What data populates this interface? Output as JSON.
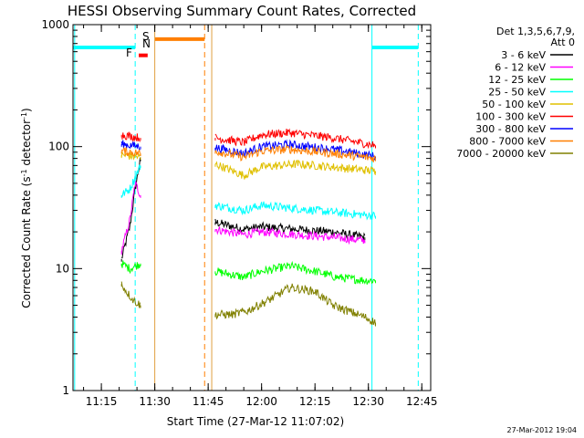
{
  "chart_data": {
    "type": "line",
    "title": "HESSI Observing Summary Count Rates, Corrected",
    "xlabel": "Start Time (27-Mar-12 11:07:02)",
    "ylabel": "Corrected Count Rate (s",
    "ylabel_sup1": "-1",
    "ylabel_mid": " detector",
    "ylabel_sup2": "-1",
    "ylabel_end": ")",
    "ylog": true,
    "ylim": [
      1,
      1000
    ],
    "xlim": [
      "11:07:02",
      "12:47:30"
    ],
    "x_ticks": [
      "11:15",
      "11:30",
      "11:45",
      "12:00",
      "12:15",
      "12:30",
      "12:45"
    ],
    "y_ticks": [
      "1",
      "10",
      "100",
      "1000"
    ],
    "legend_header": [
      "Det 1,3,5,6,7,9,",
      "Att 0"
    ],
    "timestamp": "27-Mar-2012 19:04",
    "flags": {
      "F": {
        "label": "F",
        "color": "#ff0000"
      },
      "S": {
        "label": "S",
        "color": "#ff7f00"
      },
      "N": {
        "label": "N",
        "color": "#00e0e0"
      }
    },
    "series": [
      {
        "name": "3 - 6 keV",
        "color": "#000000",
        "segments": [
          {
            "t": [
              "11:20:40",
              "11:23:00",
              "11:24:30",
              "11:26:00"
            ],
            "v": [
              12,
              22,
              45,
              80
            ]
          },
          {
            "t": [
              "11:47:00",
              "11:55:00",
              "12:00:00",
              "12:10:00",
              "12:20:00",
              "12:29:00"
            ],
            "v": [
              24,
              21,
              22,
              21,
              20,
              18
            ]
          }
        ]
      },
      {
        "name": "6 - 12 keV",
        "color": "#ff00ff",
        "segments": [
          {
            "t": [
              "11:20:40",
              "11:23:00",
              "11:24:30",
              "11:26:00"
            ],
            "v": [
              14,
              25,
              50,
              40
            ]
          },
          {
            "t": [
              "11:47:00",
              "11:55:00",
              "12:00:00",
              "12:10:00",
              "12:20:00",
              "12:29:00"
            ],
            "v": [
              21,
              19,
              20,
              19,
              18,
              17
            ]
          }
        ]
      },
      {
        "name": "12 - 25 keV",
        "color": "#00ff00",
        "segments": [
          {
            "t": [
              "11:20:40",
              "11:23:00",
              "11:26:00"
            ],
            "v": [
              11,
              10,
              11
            ]
          },
          {
            "t": [
              "11:47:00",
              "11:55:00",
              "12:00:00",
              "12:08:00",
              "12:15:00",
              "12:21:00",
              "12:29:00",
              "12:32:00"
            ],
            "v": [
              9.5,
              8.5,
              9.5,
              10.5,
              9.5,
              8.5,
              8.0,
              8.0
            ]
          }
        ]
      },
      {
        "name": "25 - 50 keV",
        "color": "#00ffff",
        "segments": [
          {
            "t": [
              "11:20:40",
              "11:23:00",
              "11:25:30",
              "11:26:00"
            ],
            "v": [
              40,
              45,
              65,
              70
            ]
          },
          {
            "t": [
              "11:47:00",
              "11:55:00",
              "12:00:00",
              "12:10:00",
              "12:20:00",
              "12:32:00"
            ],
            "v": [
              33,
              30,
              33,
              31,
              29,
              27
            ]
          }
        ]
      },
      {
        "name": "50 - 100 keV",
        "color": "#e0c000",
        "segments": [
          {
            "t": [
              "11:20:40",
              "11:26:00"
            ],
            "v": [
              85,
              82
            ]
          },
          {
            "t": [
              "11:47:00",
              "11:55:00",
              "12:00:00",
              "12:10:00",
              "12:20:00",
              "12:32:00"
            ],
            "v": [
              72,
              58,
              68,
              72,
              68,
              63
            ]
          }
        ]
      },
      {
        "name": "100 - 300 keV",
        "color": "#ff0000",
        "segments": [
          {
            "t": [
              "11:20:40",
              "11:26:00"
            ],
            "v": [
              125,
              118
            ]
          },
          {
            "t": [
              "11:47:00",
              "11:55:00",
              "12:00:00",
              "12:08:00",
              "12:20:00",
              "12:32:00"
            ],
            "v": [
              118,
              108,
              125,
              130,
              118,
              102
            ]
          }
        ]
      },
      {
        "name": "300 - 800 keV",
        "color": "#0000ff",
        "segments": [
          {
            "t": [
              "11:20:40",
              "11:26:00"
            ],
            "v": [
              105,
              100
            ]
          },
          {
            "t": [
              "11:47:00",
              "11:55:00",
              "12:00:00",
              "12:08:00",
              "12:20:00",
              "12:32:00"
            ],
            "v": [
              98,
              88,
              100,
              104,
              95,
              83
            ]
          }
        ]
      },
      {
        "name": "800 - 7000 keV",
        "color": "#ff7f00",
        "segments": [
          {
            "t": [
              "11:20:40",
              "11:26:00"
            ],
            "v": [
              92,
              88
            ]
          },
          {
            "t": [
              "11:47:00",
              "11:55:00",
              "12:00:00",
              "12:08:00",
              "12:20:00",
              "12:32:00"
            ],
            "v": [
              92,
              82,
              92,
              95,
              88,
              80
            ]
          }
        ]
      },
      {
        "name": "7000 - 20000 keV",
        "color": "#808000",
        "segments": [
          {
            "t": [
              "11:20:40",
              "11:22:00",
              "11:24:00",
              "11:26:00"
            ],
            "v": [
              7.5,
              6.5,
              5.5,
              5.0
            ]
          },
          {
            "t": [
              "11:47:00",
              "11:52:00",
              "11:56:00",
              "12:02:00",
              "12:08:00",
              "12:15:00",
              "12:20:00",
              "12:29:00",
              "12:32:00"
            ],
            "v": [
              4.2,
              4.2,
              4.5,
              5.5,
              7.0,
              6.5,
              5.0,
              4.0,
              3.6
            ]
          }
        ]
      }
    ],
    "overlays": [
      {
        "kind": "bar",
        "color": "#00ffff",
        "t1": "11:07:02",
        "t2": "11:24:30",
        "value": 650
      },
      {
        "kind": "bar",
        "color": "#ff0000",
        "t1": "11:25:30",
        "t2": "11:28:00",
        "value": 560
      },
      {
        "kind": "bar",
        "color": "#ff7f00",
        "t1": "11:30:00",
        "t2": "11:44:00",
        "value": 760
      },
      {
        "kind": "bar",
        "color": "#00ffff",
        "t1": "12:31:00",
        "t2": "12:44:00",
        "value": 650
      },
      {
        "kind": "vline",
        "color": "#00ffff",
        "t": "11:07:30",
        "style": "solid"
      },
      {
        "kind": "vline",
        "color": "#00ffff",
        "t": "11:24:30",
        "style": "dashed"
      },
      {
        "kind": "vline",
        "color": "#e0a040",
        "t": "11:30:00",
        "style": "solid"
      },
      {
        "kind": "vline",
        "color": "#ff7f00",
        "t": "11:44:00",
        "style": "dashed"
      },
      {
        "kind": "vline",
        "color": "#e0a040",
        "t": "11:46:00",
        "style": "solid"
      },
      {
        "kind": "vline",
        "color": "#00ffff",
        "t": "12:31:00",
        "style": "solid"
      },
      {
        "kind": "vline",
        "color": "#00ffff",
        "t": "12:44:00",
        "style": "dashed"
      }
    ]
  }
}
